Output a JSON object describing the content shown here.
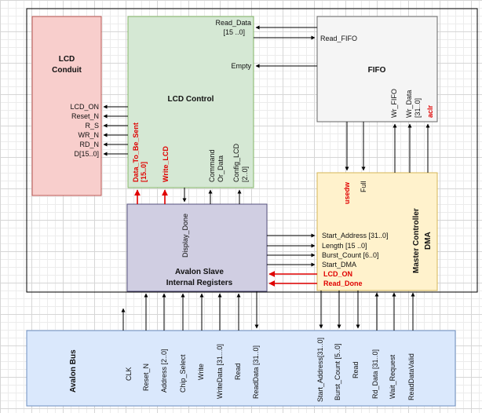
{
  "blocks": {
    "lcd_conduit": {
      "title_line1": "LCD",
      "title_line2": "Conduit",
      "pins": [
        "LCD_ON",
        "Reset_N",
        "R_S",
        "WR_N",
        "RD_N",
        "D[15..0]"
      ]
    },
    "lcd_control": {
      "title": "LCD Control",
      "read_data_line1": "Read_Data",
      "read_data_line2": "[15 ..0]",
      "empty": "Empty",
      "data_to_be_sent_line1": "Data_To_Be_Sent",
      "data_to_be_sent_line2": "[15..0]",
      "write_lcd": "Write_LCD",
      "command_line1": "Command",
      "command_line2": "Or_Data",
      "config_line1": "Config_LCD",
      "config_line2": "[2..0]"
    },
    "fifo": {
      "title": "FIFO",
      "read_fifo": "Read_FIFO",
      "wr_fifo": "Wr_FIFO",
      "wr_data_line1": "Wr_Data",
      "wr_data_line2": "[31..0]",
      "aclr": "aclr"
    },
    "master_controller": {
      "title_line1": "Master Controller",
      "title_line2": "DMA",
      "usedw": "usedw",
      "full": "Full",
      "ports": [
        "Start_Address [31..0]",
        "Length [15 ..0]",
        "Burst_Count [6..0]",
        "Start_DMA"
      ],
      "lcd_on": "LCD_ON",
      "read_done": "Read_Done"
    },
    "avalon_slave": {
      "title_line1": "Avalon Slave",
      "title_line2": "Internal Registers",
      "display_done": "Display_Done"
    },
    "avalon_bus": {
      "title": "Avalon Bus",
      "signals": [
        "CLK",
        "Reset_N",
        "Address [2..0]",
        "Chip_Select",
        "Write",
        "WriteData [31...0]",
        "Read",
        "ReadData [31..0]",
        "Start_Address[31..0]",
        "Burst_Count [5..0]",
        "Read",
        "Rd_Data [31..0]",
        "Wait_Request",
        "ReadDataValid"
      ]
    }
  },
  "colors": {
    "lcd_conduit_fill": "#f8cecc",
    "lcd_conduit_stroke": "#b85450",
    "lcd_control_fill": "#d5e8d4",
    "lcd_control_stroke": "#82b366",
    "fifo_fill": "#f5f5f5",
    "fifo_stroke": "#666666",
    "master_fill": "#fff2cc",
    "master_stroke": "#d6b656",
    "slave_fill": "#d0cee2",
    "slave_stroke": "#56517e",
    "bus_fill": "#dae8fc",
    "bus_stroke": "#6c8ebf",
    "red_signal": "#e00000"
  }
}
